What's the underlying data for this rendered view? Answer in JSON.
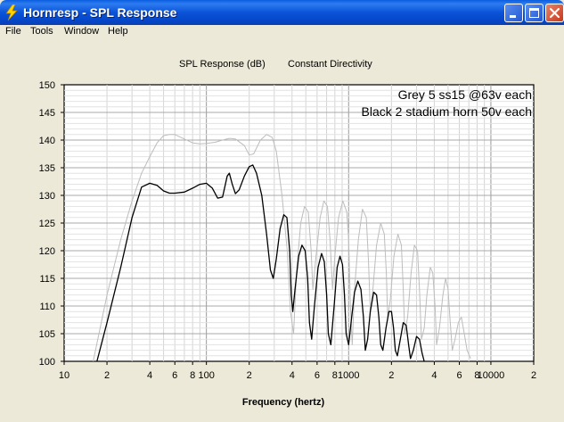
{
  "window": {
    "title": "Hornresp - SPL Response",
    "controls": [
      "minimize",
      "maximize",
      "close"
    ],
    "icon": "lightning-icon"
  },
  "menu": [
    {
      "label": "File"
    },
    {
      "label": "Tools"
    },
    {
      "label": "Window"
    },
    {
      "label": "Help"
    }
  ],
  "colors": {
    "titlebar": "#0A53D8",
    "face": "#ECE9D8",
    "plot_bg": "#FFFFFF",
    "series_grey": "#BDBDBD",
    "series_black": "#000000"
  },
  "chart_data": {
    "type": "line",
    "header_left": "SPL Response (dB)",
    "header_right": "Constant Directivity",
    "xlabel": "Frequency (hertz)",
    "x_scale": "log",
    "xlim": [
      10,
      20000
    ],
    "ylim": [
      100,
      150
    ],
    "grid": true,
    "x_ticks": [
      {
        "v": 10,
        "label": "10"
      },
      {
        "v": 20,
        "label": "2"
      },
      {
        "v": 40,
        "label": "4"
      },
      {
        "v": 60,
        "label": "6"
      },
      {
        "v": 80,
        "label": "8"
      },
      {
        "v": 100,
        "label": "100"
      },
      {
        "v": 200,
        "label": "2"
      },
      {
        "v": 400,
        "label": "4"
      },
      {
        "v": 600,
        "label": "6"
      },
      {
        "v": 800,
        "label": "8"
      },
      {
        "v": 1000,
        "label": "1000"
      },
      {
        "v": 2000,
        "label": "2"
      },
      {
        "v": 4000,
        "label": "4"
      },
      {
        "v": 6000,
        "label": "6"
      },
      {
        "v": 8000,
        "label": "8"
      },
      {
        "v": 10000,
        "label": "10000"
      },
      {
        "v": 20000,
        "label": "2"
      }
    ],
    "y_ticks": [
      {
        "v": 150,
        "label": "150"
      },
      {
        "v": 145,
        "label": "145"
      },
      {
        "v": 140,
        "label": "140"
      },
      {
        "v": 135,
        "label": "135"
      },
      {
        "v": 130,
        "label": "130"
      },
      {
        "v": 125,
        "label": "125"
      },
      {
        "v": 120,
        "label": "120"
      },
      {
        "v": 115,
        "label": "115"
      },
      {
        "v": 110,
        "label": "110"
      },
      {
        "v": 105,
        "label": "105"
      },
      {
        "v": 100,
        "label": "100"
      }
    ],
    "annotations": [
      "Grey 5 ss15 @63v each",
      "Black 2 stadium horn 50v each"
    ],
    "series": [
      {
        "color": "#BDBDBD",
        "points": [
          [
            16,
            100
          ],
          [
            20,
            112
          ],
          [
            25,
            122
          ],
          [
            30,
            129
          ],
          [
            35,
            134
          ],
          [
            40,
            137
          ],
          [
            45,
            139.5
          ],
          [
            50,
            140.8
          ],
          [
            55,
            141
          ],
          [
            60,
            141
          ],
          [
            70,
            140.2
          ],
          [
            80,
            139.5
          ],
          [
            90,
            139.3
          ],
          [
            100,
            139.4
          ],
          [
            115,
            139.6
          ],
          [
            130,
            140
          ],
          [
            145,
            140.3
          ],
          [
            160,
            140.2
          ],
          [
            185,
            139
          ],
          [
            200,
            137.3
          ],
          [
            215,
            137.5
          ],
          [
            240,
            140
          ],
          [
            265,
            141
          ],
          [
            290,
            140.5
          ],
          [
            310,
            138
          ],
          [
            340,
            130
          ],
          [
            370,
            120
          ],
          [
            390,
            109
          ],
          [
            410,
            105
          ],
          [
            430,
            116
          ],
          [
            460,
            125
          ],
          [
            490,
            128
          ],
          [
            520,
            127
          ],
          [
            545,
            120
          ],
          [
            560,
            113
          ],
          [
            590,
            119
          ],
          [
            630,
            126
          ],
          [
            670,
            129
          ],
          [
            710,
            128
          ],
          [
            740,
            122
          ],
          [
            770,
            113
          ],
          [
            800,
            119
          ],
          [
            850,
            126
          ],
          [
            910,
            129
          ],
          [
            970,
            127
          ],
          [
            1000,
            122
          ],
          [
            1030,
            110
          ],
          [
            1060,
            103
          ],
          [
            1100,
            113
          ],
          [
            1170,
            122
          ],
          [
            1250,
            127.5
          ],
          [
            1330,
            126
          ],
          [
            1380,
            118
          ],
          [
            1420,
            109
          ],
          [
            1480,
            113
          ],
          [
            1570,
            121
          ],
          [
            1680,
            125
          ],
          [
            1780,
            123
          ],
          [
            1840,
            116
          ],
          [
            1880,
            108
          ],
          [
            1960,
            111
          ],
          [
            2080,
            119
          ],
          [
            2220,
            123
          ],
          [
            2350,
            121
          ],
          [
            2420,
            113
          ],
          [
            2480,
            105
          ],
          [
            2600,
            108
          ],
          [
            2750,
            116
          ],
          [
            2900,
            121
          ],
          [
            3050,
            120
          ],
          [
            3150,
            113
          ],
          [
            3250,
            104
          ],
          [
            3400,
            106
          ],
          [
            3550,
            112
          ],
          [
            3750,
            117
          ],
          [
            3900,
            116
          ],
          [
            4050,
            110
          ],
          [
            4150,
            103
          ],
          [
            4350,
            106
          ],
          [
            4600,
            112
          ],
          [
            4800,
            115
          ],
          [
            5000,
            113
          ],
          [
            5150,
            108
          ],
          [
            5350,
            102
          ],
          [
            5600,
            104
          ],
          [
            5900,
            107
          ],
          [
            6200,
            108
          ],
          [
            6500,
            105
          ],
          [
            6800,
            102
          ],
          [
            7200,
            100.5
          ]
        ]
      },
      {
        "color": "#000000",
        "points": [
          [
            17,
            100
          ],
          [
            20,
            107
          ],
          [
            25,
            117
          ],
          [
            30,
            126
          ],
          [
            35,
            131.5
          ],
          [
            40,
            132.2
          ],
          [
            45,
            131.8
          ],
          [
            50,
            130.8
          ],
          [
            55,
            130.4
          ],
          [
            60,
            130.4
          ],
          [
            70,
            130.6
          ],
          [
            80,
            131.3
          ],
          [
            90,
            132
          ],
          [
            100,
            132.2
          ],
          [
            110,
            131.3
          ],
          [
            120,
            129.5
          ],
          [
            130,
            129.7
          ],
          [
            140,
            133.5
          ],
          [
            145,
            134
          ],
          [
            152,
            132
          ],
          [
            160,
            130.3
          ],
          [
            170,
            131
          ],
          [
            185,
            133.5
          ],
          [
            200,
            135.2
          ],
          [
            212,
            135.5
          ],
          [
            225,
            134
          ],
          [
            245,
            130
          ],
          [
            265,
            123
          ],
          [
            282,
            116.5
          ],
          [
            295,
            115
          ],
          [
            310,
            118.5
          ],
          [
            330,
            124
          ],
          [
            350,
            126.5
          ],
          [
            368,
            126
          ],
          [
            385,
            120
          ],
          [
            395,
            112
          ],
          [
            405,
            109
          ],
          [
            420,
            113
          ],
          [
            445,
            119
          ],
          [
            470,
            121
          ],
          [
            495,
            120
          ],
          [
            515,
            115
          ],
          [
            530,
            107
          ],
          [
            550,
            104
          ],
          [
            575,
            110
          ],
          [
            610,
            117
          ],
          [
            645,
            119.5
          ],
          [
            675,
            118
          ],
          [
            700,
            112
          ],
          [
            720,
            105
          ],
          [
            750,
            103
          ],
          [
            790,
            110
          ],
          [
            830,
            117
          ],
          [
            870,
            119
          ],
          [
            905,
            117.5
          ],
          [
            935,
            112
          ],
          [
            960,
            105
          ],
          [
            1000,
            103
          ],
          [
            1050,
            108
          ],
          [
            1100,
            112.5
          ],
          [
            1160,
            114.5
          ],
          [
            1220,
            113
          ],
          [
            1270,
            108
          ],
          [
            1310,
            102
          ],
          [
            1360,
            104
          ],
          [
            1420,
            109
          ],
          [
            1500,
            112.5
          ],
          [
            1570,
            112
          ],
          [
            1630,
            108
          ],
          [
            1680,
            103
          ],
          [
            1740,
            102
          ],
          [
            1830,
            106
          ],
          [
            1920,
            109
          ],
          [
            2000,
            109
          ],
          [
            2070,
            106
          ],
          [
            2130,
            102
          ],
          [
            2200,
            101
          ],
          [
            2310,
            104
          ],
          [
            2420,
            107
          ],
          [
            2540,
            106.5
          ],
          [
            2640,
            103
          ],
          [
            2720,
            100.5
          ],
          [
            2850,
            102
          ],
          [
            3000,
            104.5
          ],
          [
            3150,
            104
          ],
          [
            3280,
            101.5
          ],
          [
            3400,
            100
          ]
        ]
      }
    ]
  }
}
